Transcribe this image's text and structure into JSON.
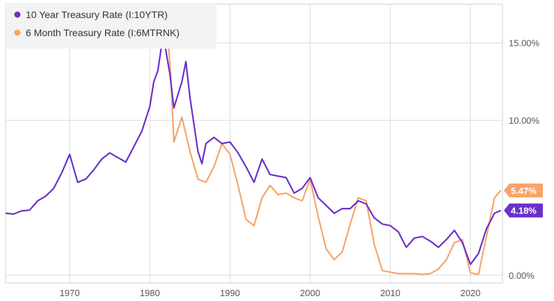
{
  "chart_data": {
    "type": "line",
    "xlim": [
      1962,
      2024
    ],
    "ylim": [
      -0.5,
      17.5
    ],
    "x_ticks": [
      {
        "value": 1970,
        "label": "1970"
      },
      {
        "value": 1980,
        "label": "1980"
      },
      {
        "value": 1990,
        "label": "1990"
      },
      {
        "value": 2000,
        "label": "2000"
      },
      {
        "value": 2010,
        "label": "2010"
      },
      {
        "value": 2020,
        "label": "2020"
      }
    ],
    "y_ticks": [
      {
        "value": 0,
        "label": "0.00%"
      },
      {
        "value": 10,
        "label": "10.00%"
      },
      {
        "value": 15,
        "label": "15.00%"
      }
    ],
    "grid": true,
    "legend_position": "top-left",
    "series": [
      {
        "name": "10 Year Treasury Rate (I:10YTR)",
        "color": "#6a31c9",
        "end_label": "4.18%",
        "points": [
          [
            1962,
            4.0
          ],
          [
            1963,
            3.95
          ],
          [
            1964,
            4.15
          ],
          [
            1965,
            4.2
          ],
          [
            1966,
            4.8
          ],
          [
            1967,
            5.1
          ],
          [
            1968,
            5.6
          ],
          [
            1969,
            6.6
          ],
          [
            1970,
            7.8
          ],
          [
            1971,
            6.0
          ],
          [
            1972,
            6.2
          ],
          [
            1973,
            6.8
          ],
          [
            1974,
            7.5
          ],
          [
            1975,
            7.9
          ],
          [
            1976,
            7.6
          ],
          [
            1977,
            7.3
          ],
          [
            1978,
            8.3
          ],
          [
            1979,
            9.3
          ],
          [
            1980,
            10.9
          ],
          [
            1980.5,
            12.5
          ],
          [
            1981,
            13.2
          ],
          [
            1981.75,
            15.8
          ],
          [
            1982,
            14.5
          ],
          [
            1982.5,
            13.0
          ],
          [
            1983,
            10.8
          ],
          [
            1984,
            12.5
          ],
          [
            1984.5,
            13.8
          ],
          [
            1985,
            11.5
          ],
          [
            1986,
            8.0
          ],
          [
            1986.5,
            7.2
          ],
          [
            1987,
            8.5
          ],
          [
            1988,
            8.9
          ],
          [
            1989,
            8.5
          ],
          [
            1990,
            8.6
          ],
          [
            1991,
            7.9
          ],
          [
            1992,
            7.0
          ],
          [
            1993,
            6.0
          ],
          [
            1994,
            7.5
          ],
          [
            1995,
            6.5
          ],
          [
            1996,
            6.4
          ],
          [
            1997,
            6.3
          ],
          [
            1998,
            5.3
          ],
          [
            1999,
            5.6
          ],
          [
            2000,
            6.3
          ],
          [
            2001,
            5.0
          ],
          [
            2002,
            4.5
          ],
          [
            2003,
            4.0
          ],
          [
            2004,
            4.3
          ],
          [
            2005,
            4.3
          ],
          [
            2006,
            4.8
          ],
          [
            2007,
            4.6
          ],
          [
            2008,
            3.7
          ],
          [
            2009,
            3.3
          ],
          [
            2010,
            3.2
          ],
          [
            2011,
            2.8
          ],
          [
            2012,
            1.8
          ],
          [
            2013,
            2.4
          ],
          [
            2014,
            2.5
          ],
          [
            2015,
            2.2
          ],
          [
            2016,
            1.8
          ],
          [
            2017,
            2.3
          ],
          [
            2018,
            2.9
          ],
          [
            2019,
            2.1
          ],
          [
            2020,
            0.7
          ],
          [
            2021,
            1.4
          ],
          [
            2022,
            3.0
          ],
          [
            2023,
            4.0
          ],
          [
            2023.8,
            4.18
          ]
        ]
      },
      {
        "name": "6 Month Treasury Rate (I:6MTRNK)",
        "color": "#f7a46a",
        "end_label": "5.47%",
        "points": [
          [
            1982.2,
            15.6
          ],
          [
            1982.6,
            13.0
          ],
          [
            1983,
            8.6
          ],
          [
            1984,
            10.2
          ],
          [
            1985,
            8.0
          ],
          [
            1986,
            6.2
          ],
          [
            1987,
            6.0
          ],
          [
            1988,
            7.0
          ],
          [
            1989,
            8.5
          ],
          [
            1990,
            7.8
          ],
          [
            1991,
            5.8
          ],
          [
            1992,
            3.6
          ],
          [
            1993,
            3.2
          ],
          [
            1994,
            5.0
          ],
          [
            1995,
            5.8
          ],
          [
            1996,
            5.2
          ],
          [
            1997,
            5.3
          ],
          [
            1998,
            5.0
          ],
          [
            1999,
            4.8
          ],
          [
            2000,
            6.2
          ],
          [
            2001,
            3.8
          ],
          [
            2002,
            1.7
          ],
          [
            2003,
            1.0
          ],
          [
            2004,
            1.5
          ],
          [
            2005,
            3.3
          ],
          [
            2006,
            5.0
          ],
          [
            2007,
            4.8
          ],
          [
            2008,
            2.0
          ],
          [
            2009,
            0.3
          ],
          [
            2010,
            0.2
          ],
          [
            2011,
            0.1
          ],
          [
            2012,
            0.1
          ],
          [
            2013,
            0.1
          ],
          [
            2014,
            0.05
          ],
          [
            2015,
            0.1
          ],
          [
            2016,
            0.4
          ],
          [
            2017,
            1.0
          ],
          [
            2018,
            2.1
          ],
          [
            2019,
            2.3
          ],
          [
            2020,
            0.15
          ],
          [
            2021,
            0.05
          ],
          [
            2022,
            2.5
          ],
          [
            2023,
            5.0
          ],
          [
            2023.8,
            5.47
          ]
        ]
      }
    ]
  }
}
